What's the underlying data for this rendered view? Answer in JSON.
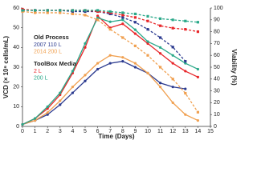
{
  "chart_data": {
    "type": "line",
    "xlabel": "Time (Days)",
    "ylabel": "VCD (× 10⁶ cells/mL)",
    "y2label": "Viability (%)",
    "legend_titles": [
      "Old Process",
      "ToolBox Media"
    ],
    "x": [
      0,
      1,
      2,
      3,
      4,
      5,
      6,
      7,
      8,
      9,
      10,
      11,
      12,
      13,
      14
    ],
    "xlim": [
      0,
      15
    ],
    "xticks": [
      0,
      1,
      2,
      3,
      4,
      5,
      6,
      7,
      8,
      9,
      10,
      11,
      12,
      13,
      14,
      15
    ],
    "ylim": [
      0,
      60
    ],
    "yticks": [
      0,
      10,
      20,
      30,
      40,
      50,
      60
    ],
    "y2lim": [
      0,
      100
    ],
    "y2ticks": [
      0,
      10,
      20,
      30,
      40,
      50,
      60,
      70,
      80,
      90,
      100
    ],
    "series": [
      {
        "name": "2007 110 L",
        "color": "#2b3a8f",
        "values": [
          1,
          3,
          6,
          11,
          17,
          23,
          29,
          32,
          33,
          30,
          27,
          22,
          20,
          19,
          null
        ]
      },
      {
        "name": "2014 200 L",
        "color": "#f0a050",
        "values": [
          1,
          3,
          7,
          13,
          20,
          26,
          32,
          36,
          35,
          32,
          27,
          20,
          12,
          6,
          3
        ]
      },
      {
        "name": "2 L",
        "color": "#e8262a",
        "values": [
          1,
          4,
          9,
          16,
          27,
          40,
          56,
          50,
          52,
          47,
          42,
          37,
          32,
          28,
          25
        ]
      },
      {
        "name": "200 L",
        "color": "#2aa889",
        "values": [
          1,
          4,
          10,
          17,
          28,
          42,
          55,
          53,
          54,
          49,
          43,
          40,
          36,
          32,
          29
        ]
      },
      {
        "color": "#2b3a8f",
        "axis": "y2",
        "values": [
          98,
          98,
          98,
          98,
          97,
          97,
          97,
          95,
          92,
          88,
          82,
          75,
          67,
          55,
          null
        ]
      },
      {
        "color": "#f0a050",
        "axis": "y2",
        "values": [
          97,
          96,
          96,
          96,
          95,
          94,
          90,
          82,
          75,
          68,
          60,
          50,
          40,
          28,
          12
        ]
      },
      {
        "color": "#e8262a",
        "axis": "y2",
        "values": [
          99,
          98,
          98,
          98,
          98,
          98,
          97,
          96,
          94,
          92,
          89,
          85,
          83,
          82,
          80
        ]
      },
      {
        "color": "#2aa889",
        "axis": "y2",
        "values": [
          98,
          98,
          98,
          98,
          98,
          98,
          98,
          97,
          96,
          95,
          93,
          91,
          90,
          89,
          88
        ]
      }
    ]
  }
}
